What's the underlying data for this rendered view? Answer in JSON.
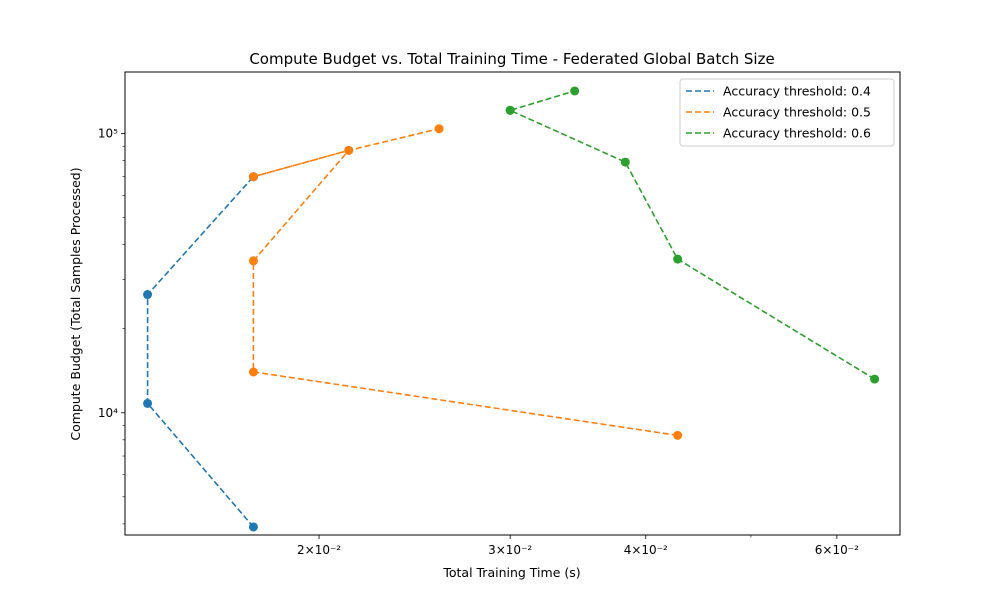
{
  "chart_data": {
    "type": "line",
    "title": "Compute Budget vs. Total Training Time - Federated Global Batch Size",
    "xlabel": "Total Training Time (s)",
    "ylabel": "Compute Budget (Total Samples Processed)",
    "xscale": "log",
    "yscale": "log",
    "xlim": [
      0.01325,
      0.0686
    ],
    "ylim": [
      3650,
      166000
    ],
    "grid": false,
    "legend_position": "top-right",
    "line_style": "dashed",
    "x_major_ticks": [
      {
        "value": 0.02,
        "label": "2×10⁻²"
      },
      {
        "value": 0.03,
        "label": "3×10⁻²"
      },
      {
        "value": 0.04,
        "label": "4×10⁻²"
      },
      {
        "value": 0.06,
        "label": "6×10⁻²"
      }
    ],
    "x_minor_ticks": [
      0.05
    ],
    "y_major_ticks": [
      {
        "value": 10000,
        "label": "10⁴"
      },
      {
        "value": 100000,
        "label": "10⁵"
      }
    ],
    "y_minor_ticks": [
      4000,
      5000,
      6000,
      7000,
      8000,
      9000,
      20000,
      30000,
      40000,
      50000,
      60000,
      70000,
      80000,
      90000
    ],
    "series": [
      {
        "name": "Accuracy threshold: 0.4",
        "color": "#1f77b4",
        "x": [
          0.0174,
          0.0139,
          0.0139,
          0.0174,
          0.0174
        ],
        "y": [
          3900,
          10800,
          26500,
          70000,
          70000
        ]
      },
      {
        "name": "Accuracy threshold: 0.5",
        "color": "#ff7f0e",
        "x": [
          0.0428,
          0.0174,
          0.0174,
          0.0213,
          0.0174,
          0.0213,
          0.0258
        ],
        "y": [
          8300,
          14000,
          35000,
          87000,
          70000,
          87000,
          104000
        ]
      },
      {
        "name": "Accuracy threshold: 0.6",
        "color": "#2ca02c",
        "x": [
          0.065,
          0.0428,
          0.0383,
          0.03,
          0.03,
          0.0344
        ],
        "y": [
          13200,
          35500,
          79000,
          121000,
          121000,
          142000
        ]
      }
    ]
  }
}
